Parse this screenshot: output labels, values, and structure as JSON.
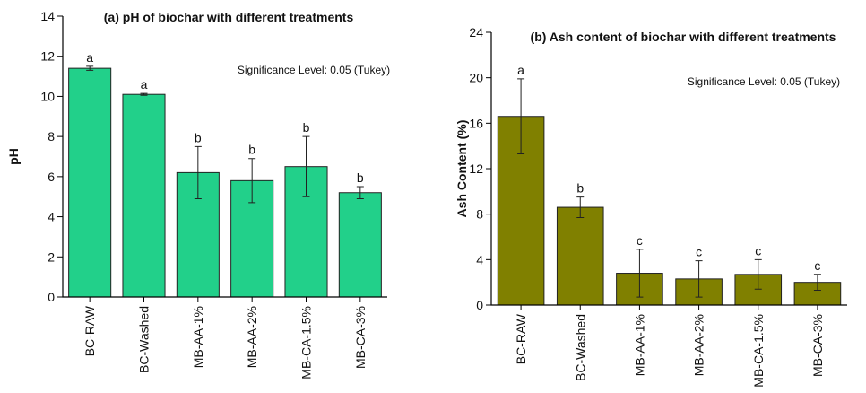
{
  "chart_data": [
    {
      "type": "bar",
      "title": "(a) pH of biochar with different treatments",
      "ylabel": "pH",
      "annotation": "Significance Level: 0.05 (Tukey)",
      "categories": [
        "BC-RAW",
        "BC-Washed",
        "MB-AA-1%",
        "MB-AA-2%",
        "MB-CA-1.5%",
        "MB-CA-3%"
      ],
      "values": [
        11.4,
        10.1,
        6.2,
        5.8,
        6.5,
        5.2
      ],
      "errors": [
        0.1,
        0.05,
        1.3,
        1.1,
        1.5,
        0.3
      ],
      "letters": [
        "a",
        "a",
        "b",
        "b",
        "b",
        "b"
      ],
      "color": "#22d08a",
      "ylim": [
        0,
        14
      ],
      "yticks": [
        0,
        2,
        4,
        6,
        8,
        10,
        12,
        14
      ]
    },
    {
      "type": "bar",
      "title": "(b) Ash content of biochar with different treatments",
      "ylabel": "Ash Content (%)",
      "annotation": "Significance Level: 0.05 (Tukey)",
      "categories": [
        "BC-RAW",
        "BC-Washed",
        "MB-AA-1%",
        "MB-AA-2%",
        "MB-CA-1.5%",
        "MB-CA-3%"
      ],
      "values": [
        16.6,
        8.6,
        2.8,
        2.3,
        2.7,
        2.0
      ],
      "errors": [
        3.3,
        0.9,
        2.1,
        1.6,
        1.3,
        0.7
      ],
      "letters": [
        "a",
        "b",
        "c",
        "c",
        "c",
        "c"
      ],
      "color": "#808000",
      "ylim": [
        0,
        24
      ],
      "yticks": [
        0,
        4,
        8,
        12,
        16,
        20,
        24
      ]
    }
  ]
}
